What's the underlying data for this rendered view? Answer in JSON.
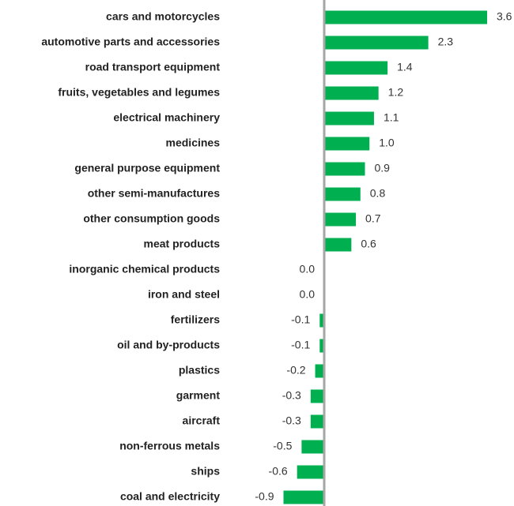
{
  "chart_data": {
    "type": "bar",
    "orientation": "horizontal",
    "color": "#00b050",
    "categories": [
      "cars and motorcycles",
      "automotive parts and accessories",
      "road transport equipment",
      "fruits, vegetables and legumes",
      "electrical machinery",
      "medicines",
      "general purpose equipment",
      "other semi-manufactures",
      "other consumption goods",
      "meat products",
      "inorganic chemical products",
      "iron and steel",
      "fertilizers",
      "oil and by-products",
      "plastics",
      "garment",
      "aircraft",
      "non-ferrous metals",
      "ships",
      "coal and electricity"
    ],
    "values": [
      3.6,
      2.3,
      1.4,
      1.2,
      1.1,
      1.0,
      0.9,
      0.8,
      0.7,
      0.6,
      0.0,
      0.0,
      -0.1,
      -0.1,
      -0.2,
      -0.3,
      -0.3,
      -0.5,
      -0.6,
      -0.9
    ],
    "value_labels": [
      "3.6",
      "2.3",
      "1.4",
      "1.2",
      "1.1",
      "1.0",
      "0.9",
      "0.8",
      "0.7",
      "0.6",
      "0.0",
      "0.0",
      "-0.1",
      "-0.1",
      "-0.2",
      "-0.3",
      "-0.3",
      "-0.5",
      "-0.6",
      "-0.9"
    ]
  }
}
